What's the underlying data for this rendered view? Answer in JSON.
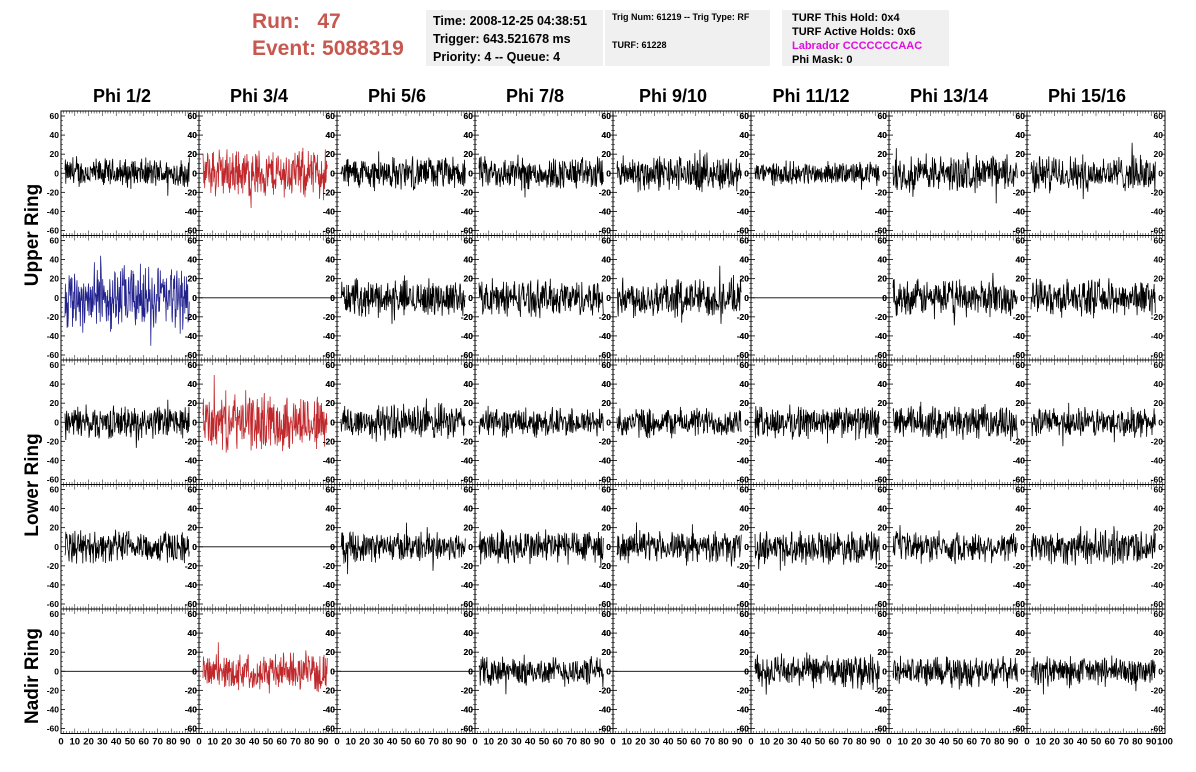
{
  "header": {
    "run_label": "Run:",
    "run_value": "47",
    "event_label": "Event:",
    "event_value": "5088319",
    "time_line": "Time: 2008-12-25 04:38:51",
    "trigger_line": "Trigger: 643.521678 ms",
    "priority_line": "Priority: 4 -- Queue: 4",
    "trig_num_line": "Trig Num: 61219 -- Trig Type: RF",
    "turf_line": "TURF: 61228",
    "turf_hold_line": "TURF This Hold: 0x4",
    "turf_active_line": "TURF Active Holds: 0x6",
    "labrador_line": "Labrador CCCCCCCAAC",
    "phi_mask_line": "Phi Mask: 0"
  },
  "columns": [
    "Phi 1/2",
    "Phi 3/4",
    "Phi 5/6",
    "Phi 7/8",
    "Phi 9/10",
    "Phi 11/12",
    "Phi 13/14",
    "Phi 15/16"
  ],
  "rows": [
    "Upper Ring",
    "Lower Ring",
    "Nadir Ring"
  ],
  "colors": {
    "red": "#c0282c",
    "blue": "#22228e",
    "black": "#000000",
    "run_text": "#c8584f",
    "labrador": "#e00ee0"
  },
  "chart_data": {
    "type": "line",
    "ylim": [
      -60,
      60
    ],
    "xlim": [
      0,
      100
    ],
    "y_ticks": [
      -60,
      -40,
      -20,
      0,
      20,
      40,
      60
    ],
    "x_tick_labels": [
      "0",
      "10",
      "20",
      "30",
      "40",
      "50",
      "60",
      "70",
      "80",
      "90",
      "100"
    ],
    "panel_rows": 5,
    "panel_cols": 8,
    "flat_panels": [
      [
        1,
        1
      ],
      [
        1,
        5
      ],
      [
        3,
        1
      ],
      [
        4,
        0
      ],
      [
        4,
        2
      ]
    ],
    "panel_colors": {
      "0,1": "red",
      "1,0": "blue",
      "2,1": "red",
      "4,1": "red"
    },
    "amplitudes": [
      [
        18,
        30,
        20,
        20,
        22,
        14,
        22,
        22
      ],
      [
        40,
        0,
        22,
        22,
        24,
        0,
        22,
        22
      ],
      [
        20,
        35,
        22,
        18,
        18,
        20,
        20,
        18
      ],
      [
        20,
        0,
        18,
        22,
        18,
        20,
        18,
        22
      ],
      [
        0,
        22,
        0,
        18,
        0,
        20,
        18,
        18
      ]
    ]
  }
}
